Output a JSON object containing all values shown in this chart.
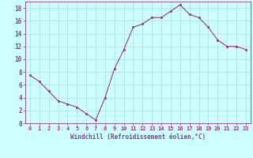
{
  "x": [
    0,
    1,
    2,
    3,
    4,
    5,
    6,
    7,
    8,
    9,
    10,
    11,
    12,
    13,
    14,
    15,
    16,
    17,
    18,
    19,
    20,
    21,
    22,
    23
  ],
  "y": [
    7.5,
    6.5,
    5.0,
    3.5,
    3.0,
    2.5,
    1.5,
    0.5,
    4.0,
    8.5,
    11.5,
    15.0,
    15.5,
    16.5,
    16.5,
    17.5,
    18.5,
    17.0,
    16.5,
    15.0,
    13.0,
    12.0,
    12.0,
    11.5
  ],
  "line_color": "#993399",
  "marker_color": "#993399",
  "bg_color": "#ccffff",
  "grid_color": "#aadddd",
  "xlabel": "Windchill (Refroidissement éolien,°C)",
  "xlabel_color": "#993399",
  "tick_color": "#993399",
  "xlim": [
    -0.5,
    23.5
  ],
  "ylim": [
    0,
    19
  ],
  "yticks": [
    0,
    2,
    4,
    6,
    8,
    10,
    12,
    14,
    16,
    18
  ],
  "xticks": [
    0,
    1,
    2,
    3,
    4,
    5,
    6,
    7,
    8,
    9,
    10,
    11,
    12,
    13,
    14,
    15,
    16,
    17,
    18,
    19,
    20,
    21,
    22,
    23
  ],
  "xtick_labels": [
    "0",
    "1",
    "2",
    "3",
    "4",
    "5",
    "6",
    "7",
    "8",
    "9",
    "10",
    "11",
    "12",
    "13",
    "14",
    "15",
    "16",
    "17",
    "18",
    "19",
    "20",
    "21",
    "22",
    "23"
  ],
  "figsize": [
    3.2,
    2.0
  ],
  "dpi": 100
}
